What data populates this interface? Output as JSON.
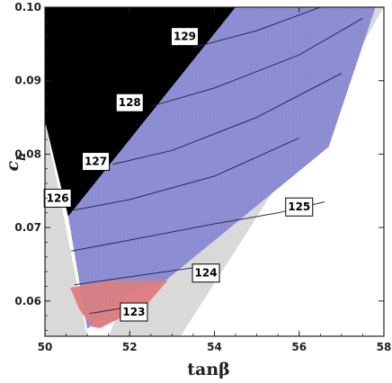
{
  "chart_data": {
    "type": "contour",
    "xlabel": "tanβ",
    "ylabel": "c_h",
    "xlim": [
      50,
      58
    ],
    "ylim": [
      0.0552,
      0.1
    ],
    "x_ticks": [
      "50",
      "52",
      "54",
      "56",
      "58"
    ],
    "y_ticks": [
      "0.06",
      "0.07",
      "0.08",
      "0.09",
      "0.10"
    ],
    "x_tick_values": [
      50,
      52,
      54,
      56,
      58
    ],
    "y_tick_values": [
      0.06,
      0.07,
      0.08,
      0.09,
      0.1
    ],
    "regions": [
      {
        "name": "gray-region",
        "color": "#d9d9d9",
        "points": [
          [
            50,
            0.0552
          ],
          [
            53.2,
            0.0552
          ],
          [
            56.5,
            0.085
          ],
          [
            58,
            0.1
          ],
          [
            58,
            0.1
          ],
          [
            57.8,
            0.1
          ],
          [
            54.6,
            0.1
          ],
          [
            51.5,
            0.0552
          ],
          [
            51.0,
            0.0552
          ],
          [
            50.0,
            0.0845
          ]
        ]
      },
      {
        "name": "black-region",
        "color": "#000000",
        "points": [
          [
            50,
            0.1
          ],
          [
            54.5,
            0.1
          ],
          [
            50.55,
            0.0715
          ],
          [
            50.0,
            0.0845
          ]
        ]
      },
      {
        "name": "blue-region",
        "color": "#8f8fd6",
        "points": [
          [
            54.5,
            0.1
          ],
          [
            57.8,
            0.1
          ],
          [
            56.7,
            0.081
          ],
          [
            52.85,
            0.0628
          ],
          [
            52.0,
            0.061
          ],
          [
            51.0,
            0.0562
          ],
          [
            50.55,
            0.0715
          ]
        ]
      },
      {
        "name": "red-region",
        "color": "#e08080",
        "points": [
          [
            50.6,
            0.0618
          ],
          [
            51.5,
            0.0628
          ],
          [
            52.9,
            0.0628
          ],
          [
            52.4,
            0.0595
          ],
          [
            51.3,
            0.0563
          ],
          [
            51.1,
            0.0565
          ],
          [
            50.8,
            0.059
          ]
        ]
      }
    ],
    "contours": [
      {
        "label": "123",
        "points": [
          [
            51.05,
            0.0583
          ],
          [
            52.3,
            0.0595
          ]
        ],
        "label_at": [
          52.1,
          0.0585
        ]
      },
      {
        "label": "124",
        "points": [
          [
            50.7,
            0.0622
          ],
          [
            52.85,
            0.064
          ],
          [
            54.1,
            0.065
          ]
        ],
        "label_at": [
          53.8,
          0.0638
        ]
      },
      {
        "label": "125",
        "points": [
          [
            50.62,
            0.0668
          ],
          [
            52.0,
            0.0683
          ],
          [
            54.0,
            0.0705
          ],
          [
            55.5,
            0.072
          ],
          [
            56.6,
            0.0735
          ]
        ],
        "label_at": [
          56.0,
          0.0728
        ]
      },
      {
        "label": "126",
        "points": [
          [
            50.62,
            0.0723
          ],
          [
            52.0,
            0.0738
          ],
          [
            54.0,
            0.077
          ],
          [
            56.0,
            0.0822
          ]
        ],
        "label_at": [
          50.3,
          0.074
        ]
      },
      {
        "label": "127",
        "points": [
          [
            51.6,
            0.0786
          ],
          [
            53.0,
            0.0805
          ],
          [
            55.0,
            0.085
          ],
          [
            57.0,
            0.091
          ]
        ],
        "label_at": [
          51.2,
          0.079
        ]
      },
      {
        "label": "128",
        "points": [
          [
            52.5,
            0.0865
          ],
          [
            54.0,
            0.089
          ],
          [
            56.0,
            0.0935
          ],
          [
            57.5,
            0.0985
          ]
        ],
        "label_at": [
          52.0,
          0.087
        ]
      },
      {
        "label": "129",
        "points": [
          [
            53.5,
            0.0945
          ],
          [
            55.0,
            0.0968
          ],
          [
            56.5,
            0.1
          ]
        ],
        "label_at": [
          53.3,
          0.096
        ]
      }
    ]
  },
  "colors": {
    "frame": "#222222",
    "contour_line": "#2a2a55",
    "grid": "#7b7bc0"
  }
}
